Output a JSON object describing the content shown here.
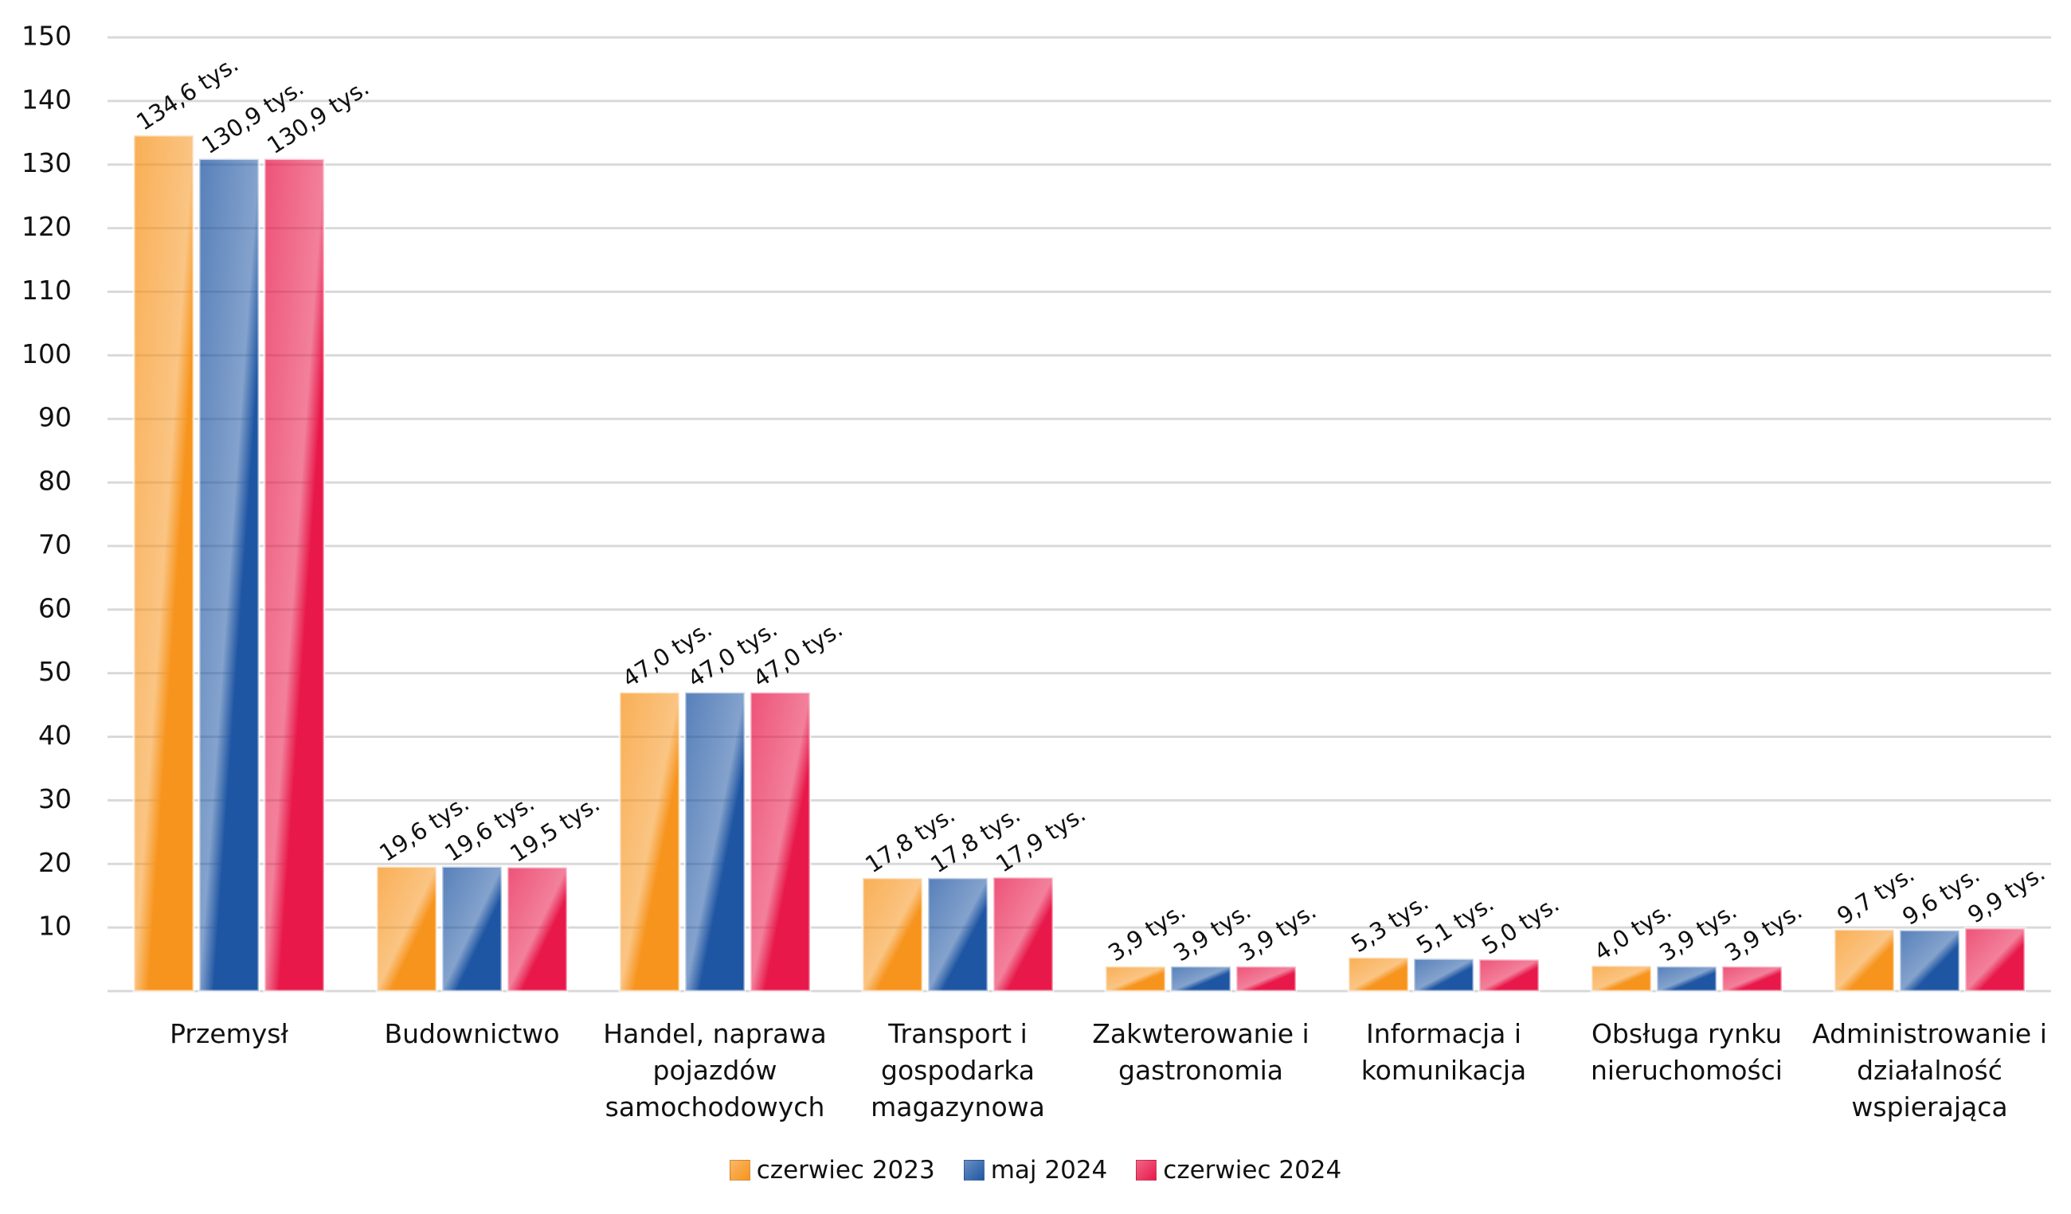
{
  "chart_data": {
    "type": "bar",
    "categories": [
      "Przemysł",
      "Budownictwo",
      "Handel, naprawa pojazdów samochodowych",
      "Transport i gospodarka magazynowa",
      "Zakwterowanie i gastronomia",
      "Informacja i komunikacja",
      "Obsługa rynku nieruchomości",
      "Administrowanie i działalność wspierająca"
    ],
    "series": [
      {
        "name": "czerwiec 2023",
        "color": "#f7941d",
        "values": [
          134.6,
          19.6,
          47.0,
          17.8,
          3.9,
          5.3,
          4.0,
          9.7
        ],
        "value_labels": [
          "134,6 tys.",
          "19,6 tys.",
          "47,0 tys.",
          "17,8 tys.",
          "3,9 tys.",
          "5,3 tys.",
          "4,0 tys.",
          "9,7 tys."
        ]
      },
      {
        "name": "maj 2024",
        "color": "#1f56a3",
        "values": [
          130.9,
          19.6,
          47.0,
          17.8,
          3.9,
          5.1,
          3.9,
          9.6
        ],
        "value_labels": [
          "130,9 tys.",
          "19,6 tys.",
          "47,0 tys.",
          "17,8 tys.",
          "3,9 tys.",
          "5,1 tys.",
          "3,9 tys.",
          "9,6 tys."
        ]
      },
      {
        "name": "czerwiec 2024",
        "color": "#e8194a",
        "values": [
          130.9,
          19.5,
          47.0,
          17.9,
          3.9,
          5.0,
          3.9,
          9.9
        ],
        "value_labels": [
          "130,9 tys.",
          "19,5 tys.",
          "47,0 tys.",
          "17,9 tys.",
          "3,9 tys.",
          "5,0 tys.",
          "3,9 tys.",
          "9,9 tys."
        ]
      }
    ],
    "ylim": [
      0,
      150
    ],
    "yticks": [
      10,
      20,
      30,
      40,
      50,
      60,
      70,
      80,
      90,
      100,
      110,
      120,
      130,
      140,
      150
    ],
    "grid": true,
    "legend": "bottom"
  }
}
